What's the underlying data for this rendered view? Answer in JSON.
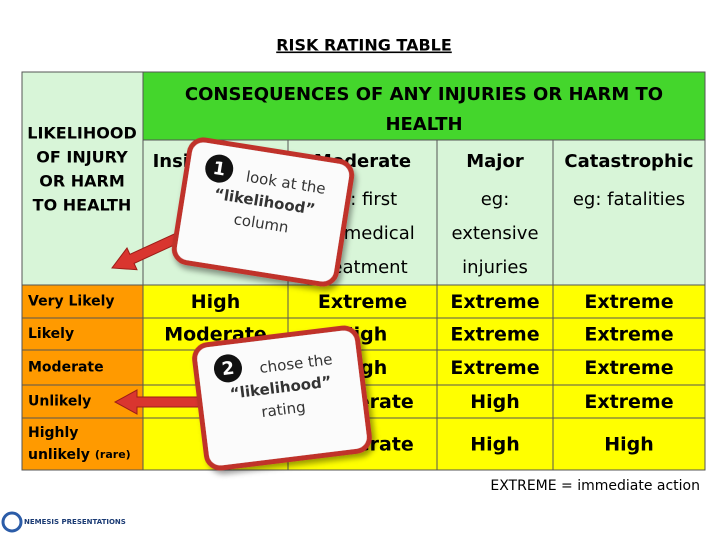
{
  "title": "RISK RATING TABLE",
  "table": {
    "corner": [
      "LIKELIHOOD",
      "OF INJURY",
      "OR HARM",
      "TO HEALTH"
    ],
    "consequences_header": [
      "CONSEQUENCES OF ANY INJURIES OR HARM TO",
      "HEALTH"
    ],
    "columns": [
      {
        "name": "Insignificant",
        "desc": []
      },
      {
        "name": "Moderate",
        "desc": [
          "eg: first",
          "aid/medical",
          "treatment"
        ]
      },
      {
        "name": "Major",
        "desc": [
          "eg:",
          "extensive",
          "injuries"
        ]
      },
      {
        "name": "Catastrophic",
        "desc": [
          "eg: fatalities"
        ]
      }
    ],
    "rows": [
      {
        "label": [
          "Very Likely"
        ],
        "cells": [
          "High",
          "Extreme",
          "Extreme",
          "Extreme"
        ]
      },
      {
        "label": [
          "Likely"
        ],
        "cells": [
          "Moderate",
          "High",
          "Extreme",
          "Extreme"
        ]
      },
      {
        "label": [
          "Moderate"
        ],
        "cells": [
          null,
          "High",
          "Extreme",
          "Extreme"
        ]
      },
      {
        "label": [
          "Unlikely"
        ],
        "cells": [
          null,
          "Moderate",
          "High",
          "Extreme"
        ]
      },
      {
        "label": [
          "Highly",
          "unlikely"
        ],
        "note": "(rare)",
        "cells": [
          null,
          "Moderate",
          "High",
          "High"
        ]
      }
    ]
  },
  "footer": "EXTREME = immediate action",
  "callouts": [
    {
      "number": "1",
      "lines": [
        "look at the",
        "“likelihood”",
        "column"
      ]
    },
    {
      "number": "2",
      "lines": [
        "chose the",
        "“likelihood”",
        "rating"
      ]
    }
  ],
  "logo": "NEMESIS PRESENTATIONS"
}
